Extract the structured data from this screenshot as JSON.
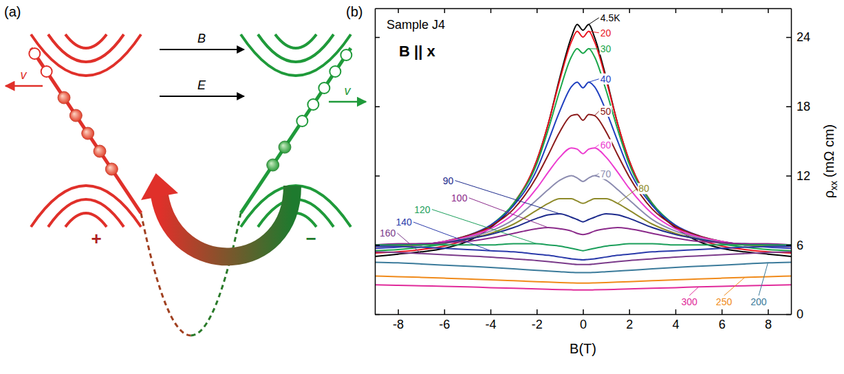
{
  "diagram": {
    "panel_label": "(a)",
    "arrows": [
      {
        "label": "B"
      },
      {
        "label": "E"
      }
    ],
    "velocity_labels": [
      "v",
      "v"
    ],
    "chirality_labels": [
      "+",
      "−"
    ]
  },
  "chart_data": {
    "panel_label": "(b)",
    "type": "line",
    "annotations": [
      "Sample J4",
      "B || x"
    ],
    "xlabel": "B(T)",
    "ylabel": {
      "text": "ρ",
      "subscript": "xx",
      "unit": "(mΩ cm)"
    },
    "xlim": [
      -9,
      9
    ],
    "xticks": [
      -8,
      -6,
      -4,
      -2,
      0,
      2,
      4,
      6,
      8
    ],
    "ylim": [
      0,
      26.5
    ],
    "yticks": [
      0,
      6,
      12,
      18,
      24
    ],
    "x": [
      -9,
      -8,
      -7,
      -6,
      -5,
      -4,
      -3,
      -2,
      -1.5,
      -1,
      -0.5,
      -0.25,
      0,
      0.25,
      0.5,
      1,
      1.5,
      2,
      3,
      4,
      5,
      6,
      7,
      8,
      9
    ],
    "series": [
      {
        "name": "4.5K",
        "color": "#000000",
        "values": [
          5.0,
          5.2,
          5.4,
          5.7,
          6.3,
          7.5,
          9.5,
          13.3,
          16.5,
          20.5,
          24.0,
          25.1,
          24.6,
          25.1,
          24.0,
          20.5,
          16.5,
          13.3,
          9.5,
          7.5,
          6.3,
          5.7,
          5.4,
          5.2,
          5.0
        ]
      },
      {
        "name": "20",
        "color": "#e8141e",
        "values": [
          5.3,
          5.4,
          5.6,
          5.9,
          6.5,
          7.6,
          9.6,
          13.3,
          16.5,
          20.3,
          23.6,
          24.5,
          24.0,
          24.5,
          23.6,
          20.3,
          16.5,
          13.3,
          9.6,
          7.6,
          6.5,
          5.9,
          5.6,
          5.4,
          5.3
        ]
      },
      {
        "name": "30",
        "color": "#1aa64a",
        "values": [
          5.5,
          5.6,
          5.8,
          6.1,
          6.7,
          7.7,
          9.6,
          13.0,
          16.0,
          19.4,
          22.3,
          23.0,
          22.6,
          23.0,
          22.3,
          19.4,
          16.0,
          13.0,
          9.6,
          7.7,
          6.7,
          6.1,
          5.8,
          5.6,
          5.5
        ]
      },
      {
        "name": "40",
        "color": "#1f3fbf",
        "values": [
          5.7,
          5.8,
          6.0,
          6.3,
          6.8,
          7.7,
          9.4,
          12.5,
          15.0,
          17.6,
          19.7,
          20.1,
          19.6,
          20.1,
          19.7,
          17.6,
          15.0,
          12.5,
          9.4,
          7.7,
          6.8,
          6.3,
          6.0,
          5.8,
          5.7
        ]
      },
      {
        "name": "50",
        "color": "#8b1a1a",
        "values": [
          5.8,
          5.9,
          6.0,
          6.3,
          6.8,
          7.6,
          9.1,
          11.9,
          13.8,
          15.8,
          17.2,
          17.3,
          16.8,
          17.3,
          17.2,
          15.8,
          13.8,
          11.9,
          9.1,
          7.6,
          6.8,
          6.3,
          6.0,
          5.9,
          5.8
        ]
      },
      {
        "name": "60",
        "color": "#ec3cd0",
        "values": [
          5.8,
          5.9,
          6.0,
          6.3,
          6.7,
          7.4,
          8.7,
          10.9,
          12.3,
          13.6,
          14.4,
          14.3,
          13.9,
          14.3,
          14.4,
          13.6,
          12.3,
          10.9,
          8.7,
          7.4,
          6.7,
          6.3,
          6.0,
          5.9,
          5.8
        ]
      },
      {
        "name": "70",
        "color": "#8c8cb0",
        "values": [
          5.8,
          5.9,
          6.0,
          6.2,
          6.6,
          7.2,
          8.2,
          9.9,
          10.8,
          11.6,
          12.0,
          11.8,
          11.5,
          11.8,
          12.0,
          11.6,
          10.8,
          9.9,
          8.2,
          7.2,
          6.6,
          6.2,
          6.0,
          5.9,
          5.8
        ]
      },
      {
        "name": "80",
        "color": "#8e8a2a",
        "values": [
          5.9,
          5.9,
          6.0,
          6.2,
          6.5,
          7.0,
          7.8,
          9.0,
          9.6,
          10.0,
          10.0,
          9.8,
          9.6,
          9.8,
          10.0,
          10.0,
          9.6,
          9.0,
          7.8,
          7.0,
          6.5,
          6.2,
          6.0,
          5.9,
          5.9
        ]
      },
      {
        "name": "90",
        "color": "#1c2a8c",
        "values": [
          6.0,
          6.0,
          6.1,
          6.2,
          6.5,
          6.9,
          7.5,
          8.3,
          8.6,
          8.7,
          8.4,
          8.2,
          8.0,
          8.2,
          8.4,
          8.7,
          8.6,
          8.3,
          7.5,
          6.9,
          6.5,
          6.2,
          6.1,
          6.0,
          6.0
        ]
      },
      {
        "name": "100",
        "color": "#8a2a8a",
        "values": [
          6.0,
          6.1,
          6.1,
          6.2,
          6.3,
          6.6,
          7.0,
          7.4,
          7.5,
          7.4,
          7.2,
          7.0,
          6.9,
          7.0,
          7.2,
          7.4,
          7.5,
          7.4,
          7.0,
          6.6,
          6.3,
          6.2,
          6.1,
          6.1,
          6.0
        ]
      },
      {
        "name": "120",
        "color": "#1a9e5a",
        "values": [
          6.0,
          6.0,
          6.0,
          6.0,
          6.0,
          6.0,
          6.1,
          6.1,
          6.0,
          5.9,
          5.7,
          5.6,
          5.5,
          5.6,
          5.7,
          5.9,
          6.0,
          6.1,
          6.1,
          6.0,
          6.0,
          6.0,
          6.0,
          6.0,
          6.0
        ]
      },
      {
        "name": "140",
        "color": "#2a3aaa",
        "values": [
          5.9,
          5.85,
          5.8,
          5.7,
          5.6,
          5.5,
          5.4,
          5.2,
          5.1,
          4.95,
          4.8,
          4.75,
          4.7,
          4.75,
          4.8,
          4.95,
          5.1,
          5.2,
          5.4,
          5.5,
          5.6,
          5.7,
          5.8,
          5.85,
          5.9
        ]
      },
      {
        "name": "160",
        "color": "#7a3a8a",
        "values": [
          5.4,
          5.35,
          5.25,
          5.15,
          5.05,
          4.95,
          4.8,
          4.65,
          4.55,
          4.45,
          4.35,
          4.3,
          4.3,
          4.3,
          4.35,
          4.45,
          4.55,
          4.65,
          4.8,
          4.95,
          5.05,
          5.15,
          5.25,
          5.35,
          5.4
        ]
      },
      {
        "name": "200",
        "color": "#3a7a9a",
        "values": [
          4.5,
          4.45,
          4.35,
          4.25,
          4.15,
          4.05,
          3.93,
          3.8,
          3.74,
          3.68,
          3.62,
          3.6,
          3.6,
          3.6,
          3.62,
          3.68,
          3.74,
          3.8,
          3.93,
          4.05,
          4.15,
          4.25,
          4.35,
          4.45,
          4.5
        ]
      },
      {
        "name": "250",
        "color": "#f08a1a",
        "values": [
          3.3,
          3.25,
          3.19,
          3.12,
          3.05,
          2.98,
          2.9,
          2.82,
          2.78,
          2.74,
          2.71,
          2.7,
          2.7,
          2.7,
          2.71,
          2.74,
          2.78,
          2.82,
          2.9,
          2.98,
          3.05,
          3.12,
          3.19,
          3.25,
          3.3
        ]
      },
      {
        "name": "300",
        "color": "#e02a9a",
        "values": [
          2.55,
          2.5,
          2.46,
          2.41,
          2.36,
          2.3,
          2.25,
          2.19,
          2.16,
          2.13,
          2.11,
          2.1,
          2.1,
          2.1,
          2.11,
          2.13,
          2.16,
          2.19,
          2.25,
          2.3,
          2.36,
          2.41,
          2.46,
          2.5,
          2.55
        ]
      }
    ]
  }
}
